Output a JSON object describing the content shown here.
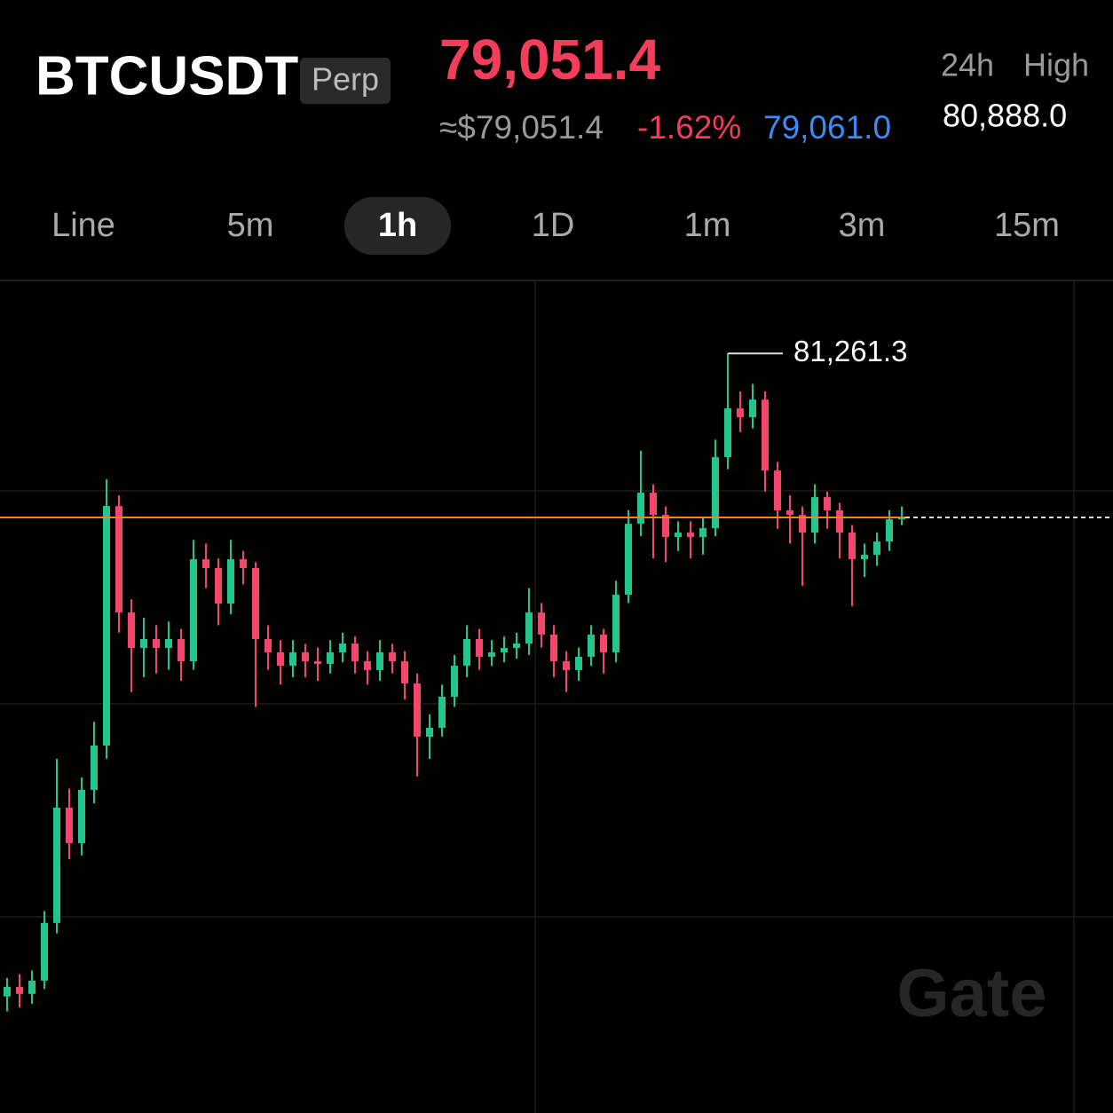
{
  "header": {
    "symbol": "BTCUSDT",
    "tag": "Perp",
    "price": "79,051.4",
    "approx_price": "≈$79,051.4",
    "change": "-1.62%",
    "mark_price": "79,061.0",
    "stat_period": "24h",
    "stat_name": "High",
    "stat_value": "80,888.0"
  },
  "tabs": {
    "items": [
      "Line",
      "5m",
      "1h",
      "1D",
      "1m",
      "3m",
      "15m"
    ],
    "active": 2
  },
  "watermark": "Gate",
  "chart_data": {
    "type": "candlestick",
    "open": [
      72600,
      72729,
      72634,
      72813,
      73590,
      75143,
      74665,
      75382,
      75980,
      79206,
      77772,
      77294,
      77414,
      77294,
      77414,
      77115,
      78489,
      78370,
      77892,
      78489,
      78370,
      77414,
      77235,
      77055,
      77235,
      77115,
      77079,
      77235,
      77354,
      77115,
      76996,
      77235,
      77115,
      76816,
      76099,
      76219,
      76637,
      77055,
      77414,
      77175,
      77235,
      77294,
      77354,
      77772,
      77474,
      77115,
      76996,
      77175,
      77474,
      77235,
      78011,
      78967,
      79386,
      79087,
      78788,
      78848,
      78788,
      78908,
      79864,
      80521,
      80401,
      80640,
      79684,
      79147,
      79087,
      78848,
      79326,
      79147,
      78848,
      78489,
      78549,
      78728,
      79027
    ],
    "high": [
      72850,
      72900,
      72950,
      73750,
      75801,
      75400,
      75550,
      76300,
      79565,
      79350,
      77950,
      77700,
      77600,
      77650,
      77550,
      78750,
      78700,
      78500,
      78750,
      78600,
      78450,
      77600,
      77400,
      77400,
      77350,
      77300,
      77400,
      77500,
      77450,
      77250,
      77400,
      77350,
      77250,
      76950,
      76400,
      76800,
      77200,
      77600,
      77550,
      77400,
      77450,
      77500,
      78100,
      77900,
      77600,
      77250,
      77300,
      77600,
      77550,
      78200,
      79150,
      79950,
      79500,
      79200,
      79000,
      79000,
      79050,
      80100,
      81261.3,
      80750,
      80850,
      80750,
      79800,
      79350,
      79200,
      79500,
      79400,
      79250,
      78950,
      78700,
      78850,
      79150,
      79200
    ],
    "low": [
      72400,
      72450,
      72500,
      72700,
      73450,
      74450,
      74500,
      75200,
      75800,
      77500,
      76700,
      76900,
      76950,
      77000,
      76850,
      77000,
      78100,
      77600,
      77750,
      78150,
      76500,
      77000,
      76800,
      76900,
      76900,
      76850,
      76950,
      77100,
      76950,
      76800,
      76850,
      76950,
      76600,
      75562,
      75800,
      76100,
      76500,
      76900,
      77000,
      77050,
      77100,
      77150,
      77200,
      77300,
      76900,
      76700,
      76850,
      77050,
      76950,
      77100,
      77900,
      78800,
      78500,
      78450,
      78600,
      78500,
      78550,
      78800,
      79700,
      80200,
      80250,
      79400,
      78900,
      78700,
      78131,
      78700,
      78900,
      78500,
      77856,
      78250,
      78400,
      78600,
      78950
    ],
    "close": [
      72729,
      72634,
      72813,
      73590,
      75143,
      74665,
      75382,
      75980,
      79206,
      77772,
      77294,
      77414,
      77294,
      77414,
      77115,
      78489,
      78370,
      77892,
      78489,
      78370,
      77414,
      77235,
      77055,
      77235,
      77115,
      77079,
      77235,
      77354,
      77115,
      76996,
      77235,
      77115,
      76816,
      76099,
      76219,
      76637,
      77055,
      77414,
      77175,
      77235,
      77294,
      77354,
      77772,
      77474,
      77115,
      76996,
      77175,
      77474,
      77235,
      78011,
      78967,
      79386,
      79087,
      78788,
      78848,
      78788,
      78908,
      79864,
      80521,
      80401,
      80640,
      79684,
      79147,
      79087,
      78848,
      79326,
      79147,
      78848,
      78489,
      78549,
      78728,
      79027,
      79051.4
    ],
    "ylim": [
      71030,
      82220
    ],
    "up_color": "#22c58b",
    "down_color": "#f2476a",
    "last_price": 79051.4,
    "price_line_color": "#f5841f",
    "high_marker": {
      "value": 81261.3,
      "label": "81,261.3",
      "index": 58
    }
  }
}
